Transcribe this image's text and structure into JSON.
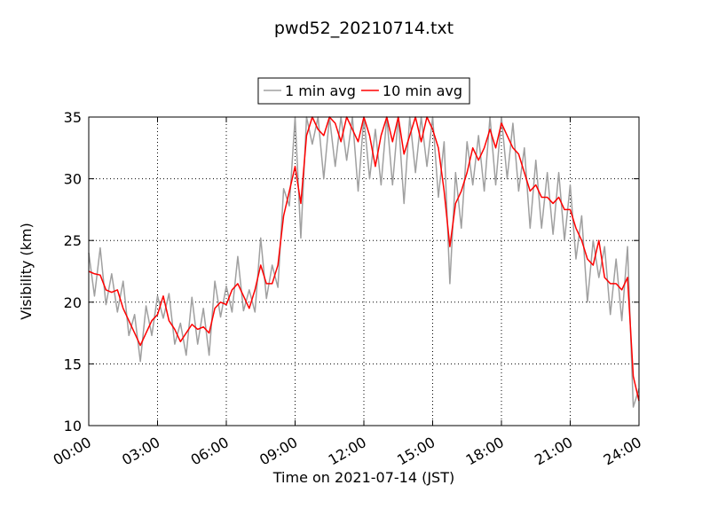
{
  "chart_data": {
    "type": "line",
    "title": "pwd52_20210714.txt",
    "x_label": "Time on 2021-07-14 (JST)",
    "y_label": "Visibility (km)",
    "x": [
      0,
      0.25,
      0.5,
      0.75,
      1,
      1.25,
      1.5,
      1.75,
      2,
      2.25,
      2.5,
      2.75,
      3,
      3.25,
      3.5,
      3.75,
      4,
      4.25,
      4.5,
      4.75,
      5,
      5.25,
      5.5,
      5.75,
      6,
      6.25,
      6.5,
      6.75,
      7,
      7.25,
      7.5,
      7.75,
      8,
      8.25,
      8.5,
      8.75,
      9,
      9.25,
      9.5,
      9.75,
      10,
      10.25,
      10.5,
      10.75,
      11,
      11.25,
      11.5,
      11.75,
      12,
      12.25,
      12.5,
      12.75,
      13,
      13.25,
      13.5,
      13.75,
      14,
      14.25,
      14.5,
      14.75,
      15,
      15.25,
      15.5,
      15.75,
      16,
      16.25,
      16.5,
      16.75,
      17,
      17.25,
      17.5,
      17.75,
      18,
      18.25,
      18.5,
      18.75,
      19,
      19.25,
      19.5,
      19.75,
      20,
      20.25,
      20.5,
      20.75,
      21,
      21.25,
      21.5,
      21.75,
      22,
      22.25,
      22.5,
      22.75,
      23,
      23.25,
      23.5,
      23.75,
      24
    ],
    "series": [
      {
        "name": "1 min avg",
        "color": "#a0a0a0",
        "values": [
          24.0,
          20.5,
          24.4,
          19.8,
          22.3,
          19.2,
          21.7,
          17.3,
          19.0,
          15.2,
          19.7,
          17.3,
          20.5,
          18.7,
          20.7,
          16.6,
          18.3,
          15.7,
          20.4,
          16.6,
          19.5,
          15.7,
          21.7,
          18.8,
          21.3,
          19.2,
          23.7,
          19.3,
          21.0,
          19.2,
          25.2,
          20.3,
          23.0,
          21.2,
          29.2,
          27.8,
          35.0,
          25.2,
          35.0,
          32.8,
          35.0,
          30.0,
          35.0,
          31.0,
          35.0,
          31.5,
          35.0,
          29.0,
          35.0,
          30.0,
          34.0,
          29.5,
          35.0,
          29.5,
          35.0,
          28.0,
          35.0,
          30.5,
          35.0,
          31.0,
          35.0,
          28.5,
          33.0,
          21.5,
          30.5,
          26.0,
          33.0,
          29.5,
          33.5,
          29.0,
          35.0,
          29.5,
          35.0,
          30.0,
          34.5,
          29.0,
          32.5,
          26.0,
          31.5,
          26.0,
          30.5,
          25.5,
          30.5,
          25.0,
          29.5,
          23.5,
          27.0,
          20.0,
          25.0,
          22.0,
          24.5,
          19.0,
          23.5,
          18.5,
          24.5,
          11.5,
          13.0
        ]
      },
      {
        "name": "10 min avg",
        "color": "#ff0000",
        "values": [
          22.5,
          22.3,
          22.2,
          21.0,
          20.8,
          21.0,
          19.5,
          18.5,
          17.5,
          16.5,
          17.5,
          18.5,
          19.0,
          20.5,
          18.5,
          17.8,
          16.8,
          17.5,
          18.2,
          17.8,
          18.0,
          17.5,
          19.5,
          20.0,
          19.8,
          21.0,
          21.5,
          20.5,
          19.5,
          21.0,
          23.0,
          21.5,
          21.5,
          23.0,
          27.0,
          29.0,
          31.0,
          28.0,
          33.5,
          35.0,
          34.0,
          33.5,
          35.0,
          34.5,
          33.0,
          35.0,
          34.0,
          33.0,
          35.0,
          33.5,
          31.0,
          33.5,
          35.0,
          33.0,
          35.0,
          32.0,
          33.5,
          35.0,
          33.0,
          35.0,
          34.0,
          32.5,
          29.0,
          24.5,
          28.0,
          29.0,
          30.5,
          32.5,
          31.5,
          32.5,
          34.0,
          32.5,
          34.5,
          33.5,
          32.5,
          32.0,
          30.5,
          29.0,
          29.5,
          28.5,
          28.5,
          28.0,
          28.5,
          27.5,
          27.5,
          26.0,
          25.0,
          23.5,
          23.0,
          25.0,
          22.0,
          21.5,
          21.5,
          21.0,
          22.0,
          14.0,
          12.0
        ]
      }
    ],
    "xlim": [
      0,
      24
    ],
    "xticks": [
      {
        "value": 0,
        "label": "00:00"
      },
      {
        "value": 3,
        "label": "03:00"
      },
      {
        "value": 6,
        "label": "06:00"
      },
      {
        "value": 9,
        "label": "09:00"
      },
      {
        "value": 12,
        "label": "12:00"
      },
      {
        "value": 15,
        "label": "15:00"
      },
      {
        "value": 18,
        "label": "18:00"
      },
      {
        "value": 21,
        "label": "21:00"
      },
      {
        "value": 24,
        "label": "24:00"
      }
    ],
    "ylim": [
      10,
      35
    ],
    "yticks": [
      10,
      15,
      20,
      25,
      30,
      35
    ],
    "grid": true,
    "legend": "top"
  }
}
